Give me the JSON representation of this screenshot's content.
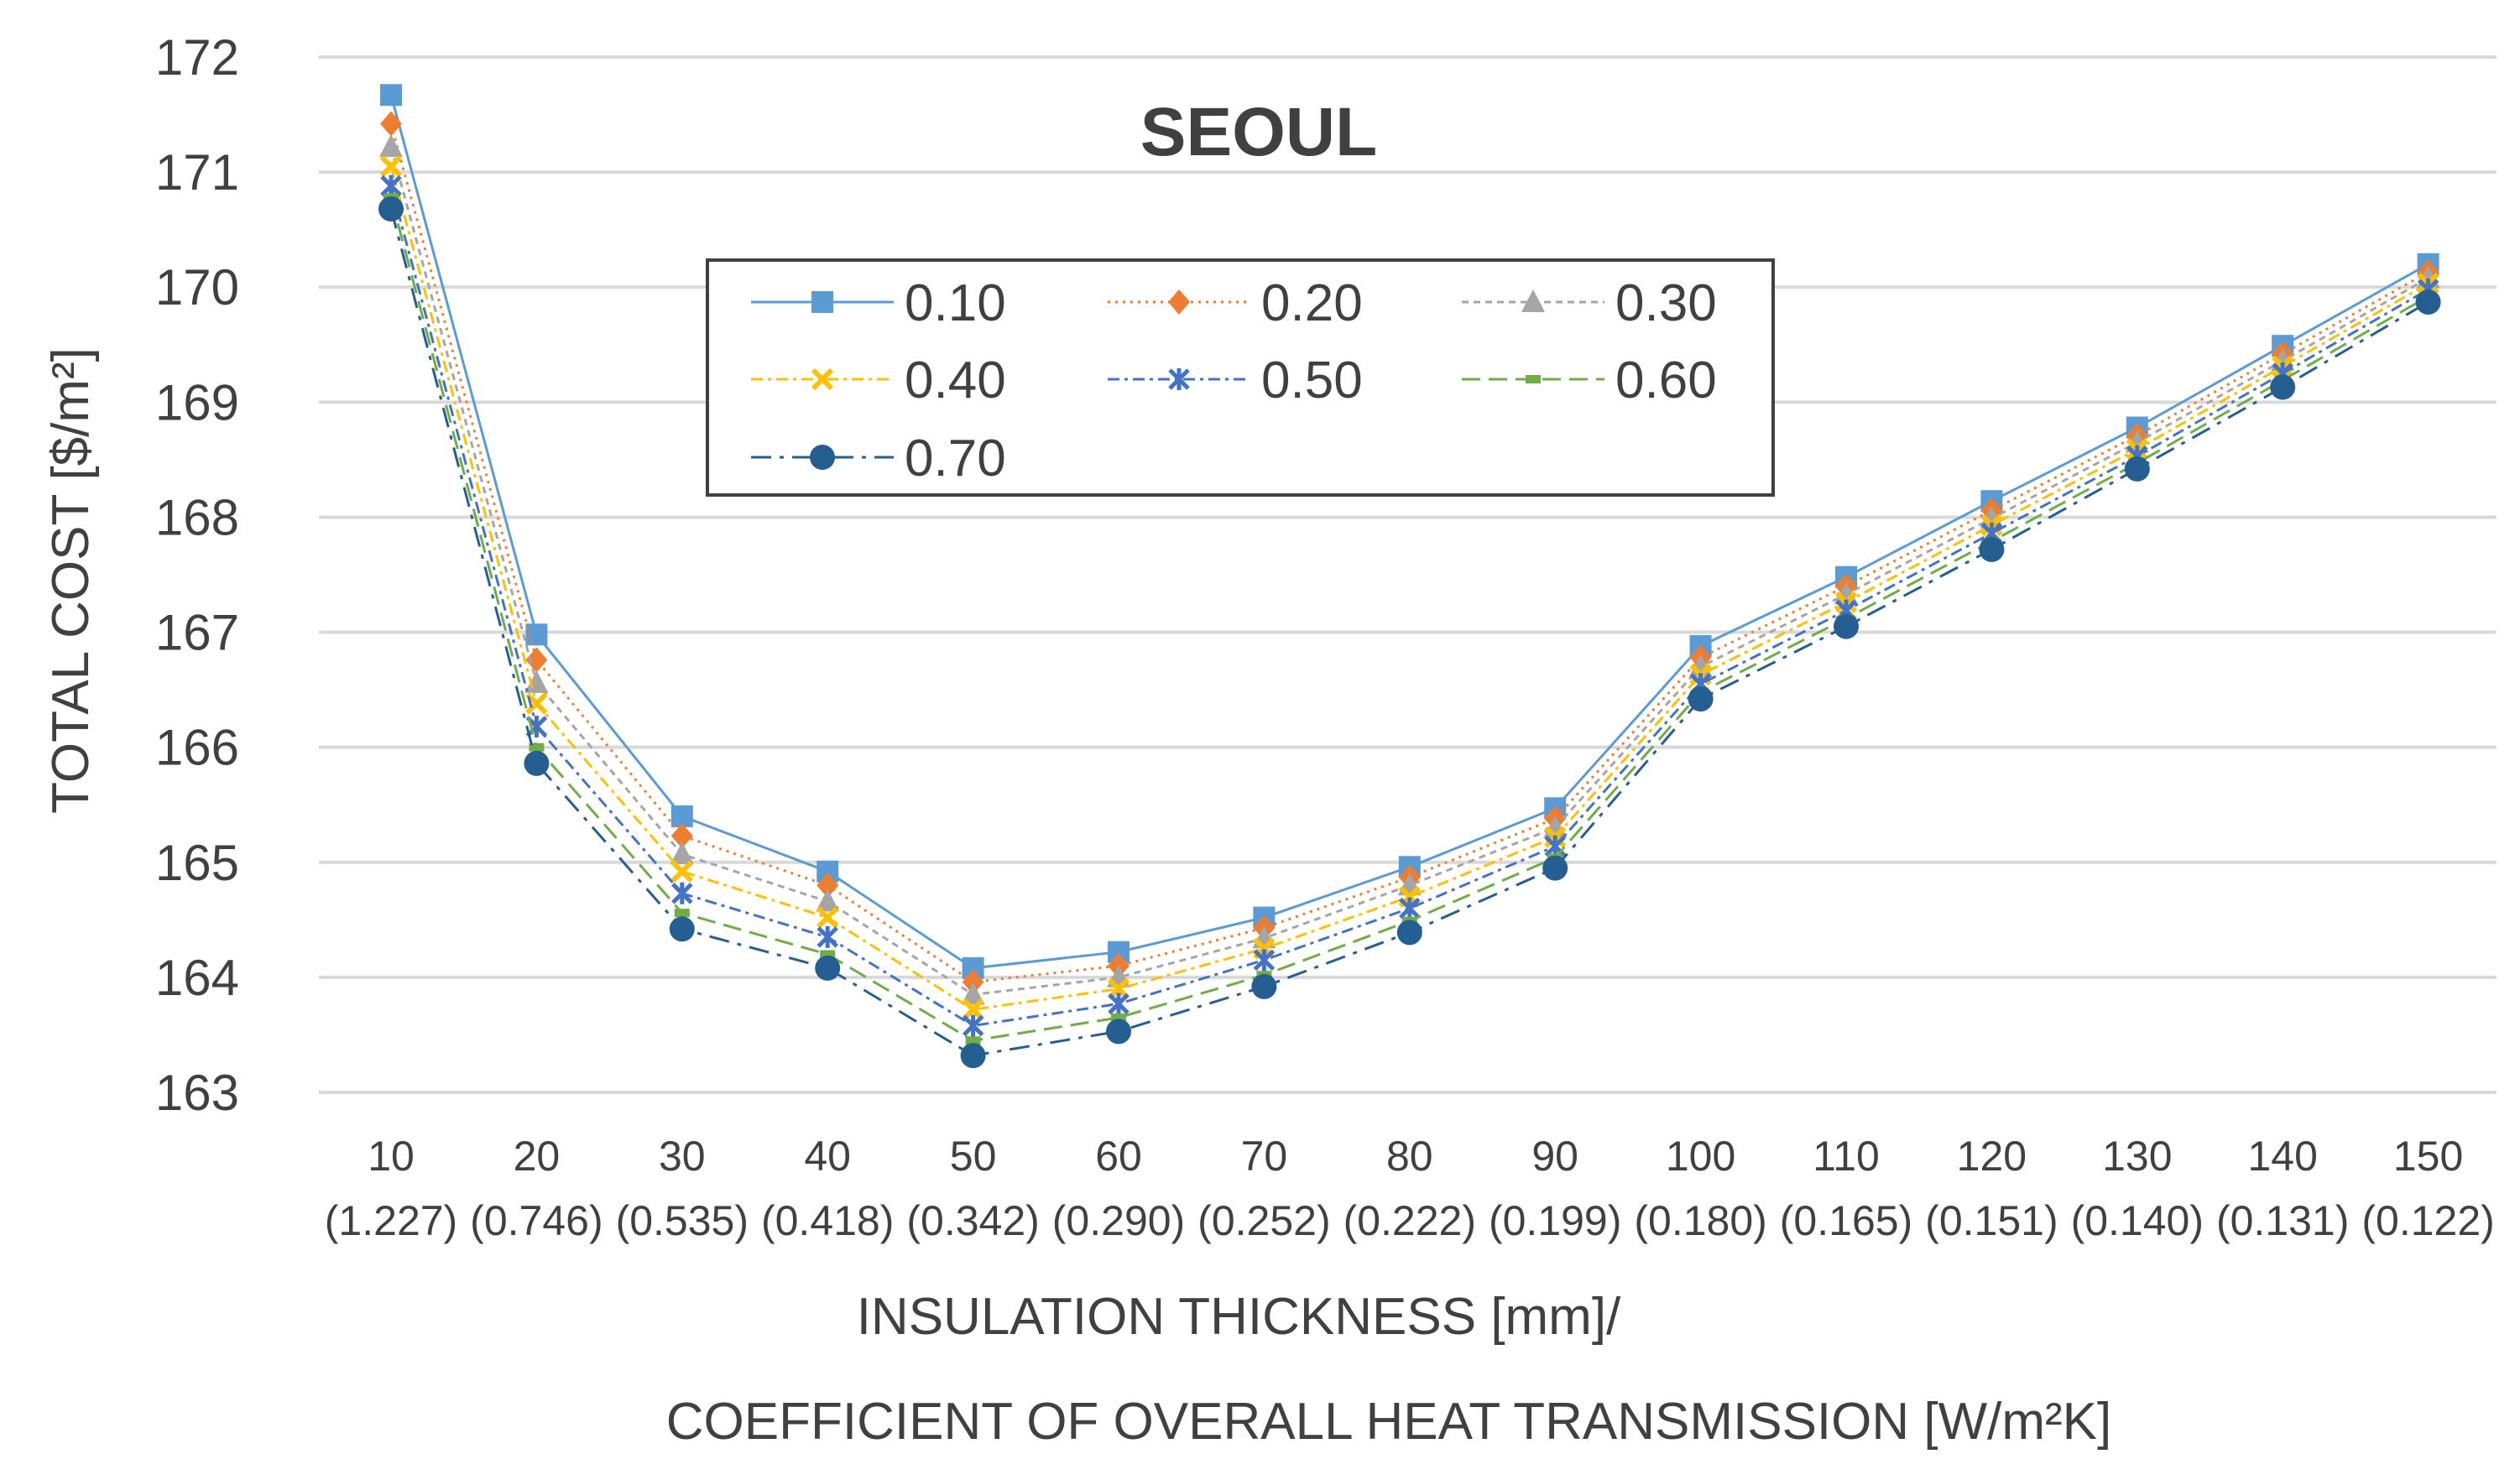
{
  "chart_data": {
    "type": "line",
    "title": "SEOUL",
    "ylabel": "TOTAL COST [$/m²]",
    "xlabel_line1": "INSULATION THICKNESS [mm]/",
    "xlabel_line2": "COEFFICIENT OF OVERALL HEAT TRANSMISSION [W/m²K]",
    "x": [
      10,
      20,
      30,
      40,
      50,
      60,
      70,
      80,
      90,
      100,
      110,
      120,
      130,
      140,
      150
    ],
    "x_secondary": [
      "(1.227)",
      "(0.746)",
      "(0.535)",
      "(0.418)",
      "(0.342)",
      "(0.290)",
      "(0.252)",
      "(0.222)",
      "(0.199)",
      "(0.180)",
      "(0.165)",
      "(0.151)",
      "(0.140)",
      "(0.131)",
      "(0.122)"
    ],
    "ylim": [
      163,
      172
    ],
    "yticks": [
      163,
      164,
      165,
      166,
      167,
      168,
      169,
      170,
      171,
      172
    ],
    "grid": true,
    "legend_position": "upper-center",
    "series": [
      {
        "name": "0.10",
        "color": "#5b9bd5",
        "marker": "square",
        "dash": "solid",
        "values": [
          171.67,
          166.98,
          165.4,
          164.92,
          164.08,
          164.22,
          164.52,
          164.96,
          165.47,
          166.88,
          167.48,
          168.14,
          168.78,
          169.49,
          170.2
        ]
      },
      {
        "name": "0.20",
        "color": "#ed7d31",
        "marker": "diamond",
        "dash": "dotted",
        "values": [
          171.42,
          166.76,
          165.23,
          164.8,
          163.96,
          164.1,
          164.43,
          164.87,
          165.38,
          166.78,
          167.4,
          168.06,
          168.71,
          169.42,
          170.13
        ]
      },
      {
        "name": "0.30",
        "color": "#a5a5a5",
        "marker": "triangle",
        "dash": "shortdash",
        "values": [
          171.22,
          166.56,
          165.07,
          164.66,
          163.85,
          164.0,
          164.34,
          164.8,
          165.3,
          166.7,
          167.33,
          167.99,
          168.65,
          169.36,
          170.08
        ]
      },
      {
        "name": "0.40",
        "color": "#ffc000",
        "marker": "x",
        "dash": "dashdot",
        "values": [
          171.05,
          166.38,
          164.92,
          164.52,
          163.72,
          163.9,
          164.25,
          164.7,
          165.22,
          166.63,
          167.26,
          167.93,
          168.59,
          169.31,
          170.03
        ]
      },
      {
        "name": "0.50",
        "color": "#4472c4",
        "marker": "star",
        "dash": "dashdot",
        "values": [
          170.88,
          166.18,
          164.73,
          164.35,
          163.58,
          163.77,
          164.15,
          164.6,
          165.14,
          166.55,
          167.19,
          167.86,
          168.53,
          169.25,
          169.98
        ]
      },
      {
        "name": "0.60",
        "color": "#70ad47",
        "marker": "dash",
        "dash": "longdash",
        "values": [
          170.78,
          166.0,
          164.56,
          164.2,
          163.45,
          163.65,
          164.02,
          164.49,
          165.04,
          166.48,
          167.12,
          167.79,
          168.47,
          169.19,
          169.92
        ]
      },
      {
        "name": "0.70",
        "color": "#255e91",
        "marker": "circle",
        "dash": "longdashdot",
        "values": [
          170.68,
          165.86,
          164.42,
          164.08,
          163.32,
          163.53,
          163.92,
          164.39,
          164.95,
          166.42,
          167.05,
          167.72,
          168.42,
          169.13,
          169.87
        ]
      }
    ]
  }
}
